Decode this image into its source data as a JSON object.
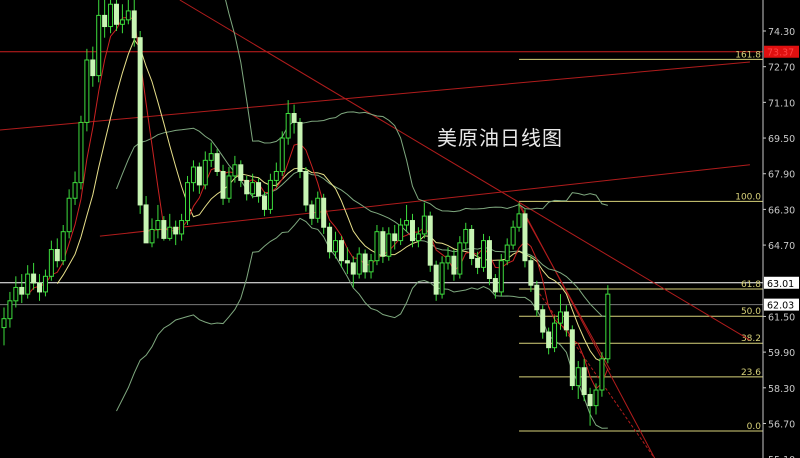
{
  "chart_data": {
    "type": "candlestick",
    "title": "美原油日线图",
    "ylim": [
      55.1,
      75.7
    ],
    "y_ticks": [
      "74.30",
      "72.70",
      "71.10",
      "69.50",
      "67.90",
      "66.30",
      "64.70",
      "61.50",
      "59.90",
      "58.30",
      "56.70",
      "55.10"
    ],
    "ohlc": [
      [
        61.0,
        61.9,
        60.2,
        61.4
      ],
      [
        61.4,
        62.6,
        61.0,
        62.2
      ],
      [
        62.2,
        63.3,
        61.9,
        62.8
      ],
      [
        62.8,
        63.4,
        62.1,
        62.5
      ],
      [
        62.5,
        63.8,
        62.3,
        63.4
      ],
      [
        63.4,
        63.9,
        62.7,
        63.0
      ],
      [
        63.0,
        63.4,
        62.2,
        62.6
      ],
      [
        62.6,
        63.6,
        62.4,
        63.3
      ],
      [
        63.3,
        64.9,
        63.1,
        64.5
      ],
      [
        64.5,
        65.0,
        63.7,
        64.0
      ],
      [
        64.0,
        65.6,
        63.8,
        65.3
      ],
      [
        65.3,
        67.2,
        65.0,
        66.8
      ],
      [
        66.8,
        68.0,
        66.5,
        67.5
      ],
      [
        67.5,
        70.5,
        67.2,
        70.2
      ],
      [
        70.2,
        73.5,
        69.8,
        73.0
      ],
      [
        73.0,
        73.6,
        71.8,
        72.3
      ],
      [
        72.3,
        75.7,
        72.0,
        75.0
      ],
      [
        75.0,
        75.7,
        74.0,
        74.5
      ],
      [
        74.5,
        75.7,
        74.2,
        75.5
      ],
      [
        75.5,
        75.7,
        74.3,
        74.6
      ],
      [
        74.6,
        75.5,
        74.2,
        74.8
      ],
      [
        74.8,
        75.7,
        74.6,
        75.2
      ],
      [
        75.2,
        75.7,
        73.6,
        74.0
      ],
      [
        74.0,
        74.3,
        66.1,
        66.5
      ],
      [
        66.5,
        66.9,
        64.8,
        64.8
      ],
      [
        64.8,
        65.9,
        64.6,
        65.4
      ],
      [
        65.4,
        66.5,
        65.0,
        65.8
      ],
      [
        65.8,
        66.0,
        64.9,
        65.0
      ],
      [
        65.0,
        66.1,
        64.9,
        65.5
      ],
      [
        65.5,
        65.8,
        64.7,
        65.2
      ],
      [
        65.2,
        66.1,
        64.9,
        65.8
      ],
      [
        65.8,
        67.8,
        65.6,
        67.5
      ],
      [
        67.5,
        68.5,
        67.1,
        68.2
      ],
      [
        68.2,
        68.4,
        67.0,
        67.4
      ],
      [
        67.4,
        68.9,
        67.2,
        68.5
      ],
      [
        68.5,
        69.3,
        68.2,
        68.8
      ],
      [
        68.8,
        69.0,
        67.8,
        68.0
      ],
      [
        68.0,
        68.3,
        66.5,
        66.8
      ],
      [
        66.8,
        68.2,
        66.6,
        67.8
      ],
      [
        67.8,
        68.7,
        67.5,
        68.3
      ],
      [
        68.3,
        68.5,
        67.3,
        67.6
      ],
      [
        67.6,
        67.8,
        66.7,
        67.0
      ],
      [
        67.0,
        67.9,
        66.8,
        67.5
      ],
      [
        67.5,
        67.7,
        66.6,
        66.9
      ],
      [
        66.9,
        67.1,
        66.0,
        66.3
      ],
      [
        66.3,
        67.9,
        66.1,
        67.6
      ],
      [
        67.6,
        68.4,
        67.3,
        68.0
      ],
      [
        68.0,
        69.8,
        67.8,
        69.5
      ],
      [
        69.5,
        71.2,
        69.2,
        70.6
      ],
      [
        70.6,
        71.0,
        69.7,
        70.2
      ],
      [
        70.2,
        70.4,
        67.7,
        68.0
      ],
      [
        68.0,
        68.2,
        66.2,
        66.5
      ],
      [
        66.5,
        66.7,
        65.6,
        65.9
      ],
      [
        65.9,
        67.1,
        65.7,
        66.8
      ],
      [
        66.8,
        67.0,
        65.2,
        65.5
      ],
      [
        65.5,
        65.7,
        64.1,
        64.4
      ],
      [
        64.4,
        65.3,
        64.1,
        64.9
      ],
      [
        64.9,
        65.1,
        63.7,
        64.0
      ],
      [
        64.0,
        64.6,
        63.4,
        63.9
      ],
      [
        63.9,
        64.2,
        62.8,
        63.4
      ],
      [
        63.4,
        64.6,
        63.2,
        64.3
      ],
      [
        64.3,
        64.5,
        63.2,
        63.5
      ],
      [
        63.5,
        64.3,
        63.2,
        64.0
      ],
      [
        64.0,
        65.6,
        63.8,
        65.3
      ],
      [
        65.3,
        65.5,
        63.9,
        64.2
      ],
      [
        64.2,
        65.5,
        64.0,
        65.2
      ],
      [
        65.2,
        65.6,
        64.5,
        64.9
      ],
      [
        64.9,
        65.9,
        64.7,
        65.6
      ],
      [
        65.6,
        66.5,
        65.3,
        65.8
      ],
      [
        65.8,
        66.1,
        64.6,
        64.9
      ],
      [
        64.9,
        65.5,
        64.6,
        65.2
      ],
      [
        65.2,
        66.6,
        65.0,
        66.0
      ],
      [
        66.0,
        66.2,
        63.5,
        63.8
      ],
      [
        63.8,
        64.0,
        62.2,
        62.5
      ],
      [
        62.5,
        64.2,
        62.3,
        63.9
      ],
      [
        63.9,
        64.6,
        63.6,
        64.2
      ],
      [
        64.2,
        64.5,
        63.1,
        63.4
      ],
      [
        63.4,
        65.1,
        63.2,
        64.8
      ],
      [
        64.8,
        65.7,
        64.5,
        65.4
      ],
      [
        65.4,
        65.6,
        63.8,
        64.1
      ],
      [
        64.1,
        64.4,
        63.4,
        63.7
      ],
      [
        63.7,
        65.2,
        63.5,
        64.9
      ],
      [
        64.9,
        65.1,
        62.9,
        63.2
      ],
      [
        63.2,
        63.4,
        62.3,
        62.6
      ],
      [
        62.6,
        64.3,
        62.4,
        64.0
      ],
      [
        64.0,
        65.0,
        63.8,
        64.7
      ],
      [
        64.7,
        65.8,
        64.5,
        65.5
      ],
      [
        65.5,
        66.6,
        65.3,
        66.1
      ],
      [
        66.1,
        66.3,
        63.7,
        64.0
      ],
      [
        64.0,
        64.2,
        62.6,
        62.9
      ],
      [
        62.9,
        63.1,
        61.5,
        61.8
      ],
      [
        61.8,
        62.0,
        60.5,
        60.8
      ],
      [
        60.8,
        61.0,
        59.8,
        60.1
      ],
      [
        60.1,
        61.5,
        59.9,
        61.2
      ],
      [
        61.2,
        62.5,
        60.9,
        61.7
      ],
      [
        61.7,
        62.0,
        60.6,
        60.9
      ],
      [
        60.9,
        61.1,
        58.2,
        58.4
      ],
      [
        58.4,
        59.5,
        57.8,
        59.2
      ],
      [
        59.2,
        59.6,
        57.7,
        58.0
      ],
      [
        58.0,
        58.3,
        56.6,
        57.5
      ],
      [
        57.5,
        58.5,
        57.1,
        58.2
      ],
      [
        58.2,
        59.9,
        57.9,
        59.6
      ],
      [
        59.6,
        62.9,
        59.4,
        62.5
      ]
    ],
    "indicators": {
      "ma_fast": {
        "period": 5,
        "color": "#cc2222"
      },
      "ma_slow": {
        "period": 10,
        "color": "#e8e08a"
      },
      "bollinger": {
        "period": 20,
        "deviations": 2,
        "color": "#7fa87f"
      }
    },
    "horizontal_lines": [
      {
        "price": 73.37,
        "color": "#cc1f1f",
        "label": "73.37"
      },
      {
        "price": 63.01,
        "color": "#ffffff",
        "label": "63.01"
      },
      {
        "price": 62.03,
        "color": "#7a7a7a",
        "label": "62.03"
      }
    ],
    "fibonacci": {
      "color": "#d8d27a",
      "start_index": 87,
      "levels": [
        {
          "label": "161.8",
          "price": 73.03
        },
        {
          "label": "100.0",
          "price": 66.66
        },
        {
          "label": "61.8",
          "price": 62.73
        },
        {
          "label": "50.0",
          "price": 61.51
        },
        {
          "label": "38.2",
          "price": 60.3
        },
        {
          "label": "23.6",
          "price": 58.79
        },
        {
          "label": "0.0",
          "price": 56.36
        }
      ]
    },
    "trendlines": [
      {
        "from": [
          29.7,
          75.69
        ],
        "to": [
          126,
          60.44
        ],
        "color": "#b01c1c"
      },
      {
        "from": [
          -0.7,
          69.86
        ],
        "to": [
          126,
          72.91
        ],
        "color": "#b01c1c"
      },
      {
        "from": [
          16.2,
          65.1
        ],
        "to": [
          126,
          68.3
        ],
        "color": "#b01c1c"
      },
      {
        "from": [
          87,
          66.6
        ],
        "to": [
          110,
          55.1
        ],
        "color": "#b01c1c"
      },
      {
        "from": [
          87,
          66.5
        ],
        "to": [
          102.4,
          59.1
        ],
        "color": "#b01c1c"
      },
      {
        "from": [
          90,
          62.7
        ],
        "to": [
          110,
          55.1
        ],
        "color": "#b01c1c",
        "dashed": true
      }
    ],
    "colors": {
      "background": "#000000",
      "bull": "#3ddc3d",
      "bear": "#c8f5b4",
      "axis": "#c8c8c8"
    }
  }
}
